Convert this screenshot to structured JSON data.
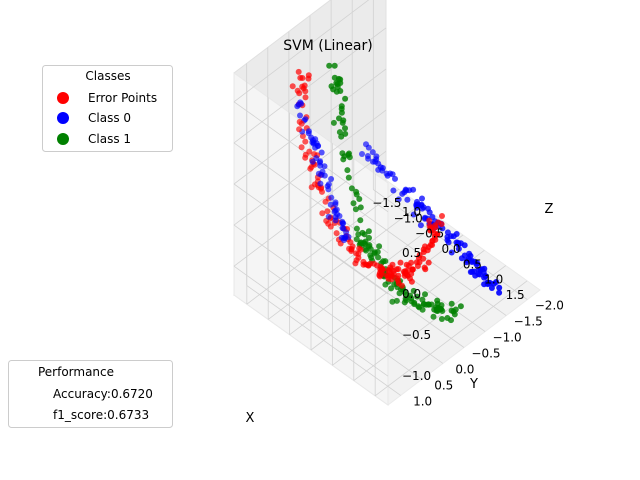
{
  "chart_data": {
    "type": "scatter",
    "title": "SVM (Linear)",
    "xlabel": "X",
    "ylabel": "Y",
    "zlabel": "Z",
    "xlim": [
      -1.8,
      1.8
    ],
    "ylim": [
      -2.3,
      1.3
    ],
    "zlim": [
      -1.35,
      1.35
    ],
    "x_ticks": [
      "1.5",
      "1.0",
      "0.5",
      "0.0",
      "0.5",
      "1.0",
      "1.5"
    ],
    "x_tick_values": [
      -1.5,
      -1.0,
      -0.5,
      0.0,
      0.5,
      1.0,
      1.5
    ],
    "x_tick_labels": [
      "−1.5",
      "−1.0",
      "−0.5",
      "0.0",
      "0.5",
      "1.0",
      "1.5"
    ],
    "y_tick_values": [
      -2.0,
      -1.5,
      -1.0,
      -0.5,
      0.0,
      0.5,
      1.0
    ],
    "y_tick_labels": [
      "−2.0",
      "−1.5",
      "−1.0",
      "−0.5",
      "0.0",
      "0.5",
      "1.0"
    ],
    "z_tick_values": [
      -1.0,
      -0.5,
      0.0,
      0.5,
      1.0
    ],
    "z_tick_labels": [
      "−1.0",
      "−0.5",
      "0.0",
      "0.5",
      "1.0"
    ],
    "grid": true,
    "series": [
      {
        "name": "Error Points",
        "color": "#ff0000"
      },
      {
        "name": "Class 0",
        "color": "#0000ff"
      },
      {
        "name": "Class 1",
        "color": "#008000"
      }
    ],
    "legend": {
      "title": "Classes",
      "placement": "upper-left",
      "entries": [
        "Error Points",
        "Class 0",
        "Class 1"
      ]
    },
    "performance": {
      "title": "Performance",
      "placement": "lower-left",
      "lines": [
        "Accuracy:0.6720",
        "f1_score:0.6733"
      ]
    }
  }
}
